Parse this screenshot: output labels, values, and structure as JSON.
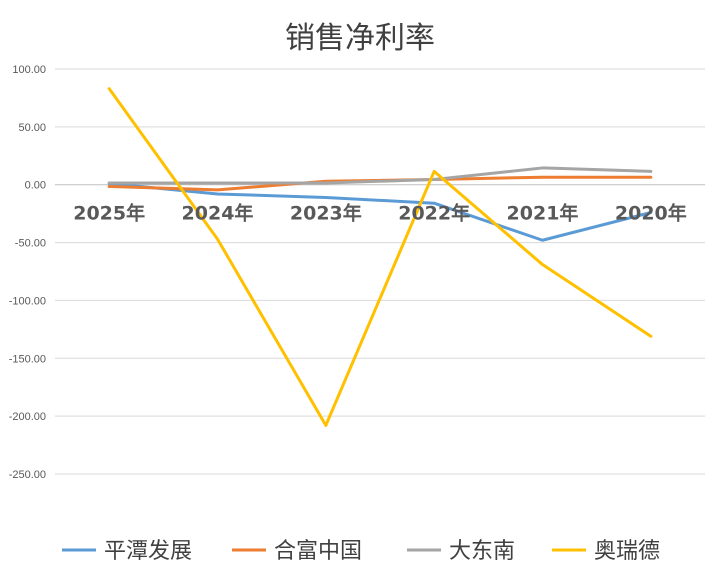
{
  "chart_data": {
    "type": "line",
    "title": "销售净利率",
    "categories": [
      "2025年",
      "2024年",
      "2023年",
      "2022年",
      "2021年",
      "2020年"
    ],
    "ylim": [
      -250,
      100
    ],
    "yticks": [
      "100.00",
      "50.00",
      "0.00",
      "-50.00",
      "-100.00",
      "-150.00",
      "-200.00",
      "-250.00"
    ],
    "grid": true,
    "legend_position": "bottom",
    "series": [
      {
        "name": "平潭发展",
        "color": "#5b9bd5",
        "values": [
          1.0,
          -8.0,
          -11.0,
          -16.0,
          -48.0,
          -24.0
        ]
      },
      {
        "name": "合富中国",
        "color": "#ed7d31",
        "values": [
          -1.5,
          -4.5,
          3.0,
          4.5,
          6.5,
          6.5
        ]
      },
      {
        "name": "大东南",
        "color": "#a5a5a5",
        "values": [
          1.5,
          1.5,
          1.5,
          4.5,
          14.5,
          11.5
        ]
      },
      {
        "name": "奥瑞德",
        "color": "#ffc000",
        "values": [
          83.0,
          -47.0,
          -208.0,
          11.5,
          -69.0,
          -131.0
        ]
      }
    ]
  }
}
